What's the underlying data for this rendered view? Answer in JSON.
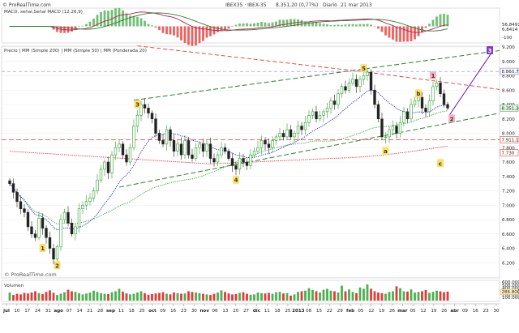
{
  "header": {
    "brand": "© ProRealTime.com",
    "instrument": "IBEX35 · IBEX-35",
    "last": "8.351,20 (0,77%)",
    "period": "Diario",
    "date": "21 mar 2013"
  },
  "panels": {
    "macd_label": "MACD, señal,Señal MACD (12,26,9)",
    "price_label": "Precio | MM (Simple 200) | MM (Simple 50) | MM (Ponderada 20)",
    "volume_label": "Volumen",
    "brand_small": "© ProRealTime.com"
  },
  "colors": {
    "up": "#2ca02c",
    "down": "#222222",
    "ma200": "#d62728",
    "ma50": "#2ca02c",
    "ma20": "#1f1fbf",
    "trend_upper": "#2e7d32",
    "resistance": "#e53935",
    "projection": "#6a1bb5",
    "label_bg_yellow": "#ffe066",
    "label_bg_pink": "#f8b4c0"
  },
  "chart_data": {
    "type": "candlestick",
    "title": "IBEX35",
    "period": "Diario",
    "price_axis": {
      "ylim": [
        6000,
        9200
      ],
      "ticks": [
        6200,
        6400,
        6600,
        6800,
        7000,
        7200,
        7400,
        7600,
        7800,
        8000,
        8200,
        8400,
        8600,
        8800,
        9000,
        9200
      ],
      "tick_labels": [
        "6.200",
        "6.400",
        "6.600",
        "6.800",
        "7.000",
        "7.200",
        "7.400",
        "7.600",
        "7.800",
        "8.000",
        "8.200",
        "8.400",
        "8.600",
        "8.800",
        "9.000",
        "9.200"
      ]
    },
    "price_tags": [
      {
        "text": "8.860,7",
        "value": 8860.7,
        "color": "#6666cc"
      },
      {
        "text": "8.351,20",
        "value": 8351.2,
        "color": "#2ca02c"
      },
      {
        "text": "7.911,1",
        "value": 7911.1,
        "color": "#d62728"
      },
      {
        "text": "7.730",
        "value": 7730,
        "color": "#d62728"
      }
    ],
    "x_axis_labels": [
      "jul",
      "10",
      "17",
      "24",
      "31",
      "ago",
      "07",
      "14",
      "21",
      "28",
      "sep",
      "11",
      "18",
      "25",
      "oct",
      "09",
      "16",
      "23",
      "30",
      "nov",
      "06",
      "13",
      "20",
      "27",
      "dic",
      "11",
      "18",
      "25",
      "2013",
      "08",
      "15",
      "22",
      "29",
      "feb",
      "05",
      "12",
      "19",
      "26",
      "mar",
      "05",
      "12",
      "19",
      "26",
      "abr",
      "09",
      "16",
      "23",
      "30"
    ],
    "close": [
      7300,
      7180,
      7050,
      6950,
      6900,
      6700,
      6600,
      6550,
      6820,
      6680,
      6550,
      6400,
      6250,
      6420,
      6800,
      6900,
      6750,
      6600,
      6700,
      6950,
      7000,
      7050,
      7100,
      7200,
      7350,
      7500,
      7600,
      7450,
      7700,
      7800,
      7850,
      7700,
      7600,
      7800,
      8100,
      8250,
      8400,
      8350,
      8280,
      8200,
      8000,
      7900,
      7850,
      8050,
      7900,
      7750,
      7850,
      7700,
      7900,
      7700,
      7650,
      7800,
      7850,
      7750,
      7850,
      7650,
      7600,
      7700,
      7800,
      7750,
      7650,
      7550,
      7500,
      7650,
      7600,
      7550,
      7700,
      7750,
      7800,
      7900,
      7850,
      7800,
      7900,
      7950,
      8000,
      7950,
      8050,
      7950,
      8000,
      8100,
      8050,
      8150,
      8250,
      8300,
      8200,
      8250,
      8300,
      8350,
      8450,
      8400,
      8550,
      8650,
      8600,
      8700,
      8750,
      8650,
      8750,
      8800,
      8850,
      8600,
      8400,
      8200,
      7950,
      7950,
      8050,
      8100,
      8000,
      8150,
      8300,
      8200,
      8400,
      8450,
      8500,
      8350,
      8300,
      8450,
      8650,
      8700,
      8550,
      8400,
      8351
    ],
    "ohlc_note": "Daily candles; bullish candles hollow/green, bearish filled black",
    "annotations": [
      {
        "text": "1",
        "kind": "wave",
        "color": "yellow"
      },
      {
        "text": "2",
        "kind": "wave",
        "color": "yellow"
      },
      {
        "text": "3",
        "kind": "wave",
        "color": "yellow"
      },
      {
        "text": "4",
        "kind": "wave",
        "color": "yellow"
      },
      {
        "text": "5",
        "kind": "wave",
        "color": "yellow"
      },
      {
        "text": "a",
        "kind": "wave",
        "color": "yellow"
      },
      {
        "text": "b",
        "kind": "wave",
        "color": "yellow"
      },
      {
        "text": "c",
        "kind": "wave",
        "color": "yellow"
      },
      {
        "text": "1",
        "kind": "wave",
        "color": "pink"
      },
      {
        "text": "2",
        "kind": "wave",
        "color": "pink"
      },
      {
        "text": "3",
        "kind": "wave",
        "color": "purple"
      }
    ],
    "macd_axis": {
      "tick_labels": [
        "-100"
      ],
      "values_labels": [
        "56,8491",
        "6,8414"
      ]
    },
    "volume_axis": {
      "tick_labels": [
        "600.000",
        "500.000",
        "400.000",
        "300.000",
        "200.000",
        "100.000"
      ],
      "last_label": "286.800"
    },
    "volume": [
      260,
      180,
      220,
      200,
      250,
      230,
      260,
      300,
      240,
      210,
      280,
      330,
      250,
      180,
      220,
      270,
      350,
      300,
      280,
      240,
      200,
      230,
      260,
      320,
      280,
      240,
      220,
      210,
      270,
      300,
      380,
      290,
      230,
      200,
      220,
      260,
      300,
      240,
      190,
      210,
      230,
      250,
      270,
      220,
      200,
      260,
      240,
      220,
      230,
      300,
      280,
      260,
      240,
      220,
      200,
      180,
      220,
      260,
      330,
      280,
      230,
      200,
      210,
      250,
      270,
      220,
      190,
      200,
      260,
      240,
      230,
      250,
      220,
      270,
      280,
      230,
      240,
      160,
      200,
      280,
      300,
      320,
      400,
      340,
      300,
      260,
      350,
      380,
      320,
      300,
      260,
      480,
      300,
      360,
      280,
      240,
      420,
      380,
      520,
      380,
      300,
      260,
      240,
      220,
      280,
      300,
      460,
      400,
      300,
      290,
      360,
      260,
      280,
      300,
      340,
      250,
      280,
      320,
      300,
      270,
      290
    ]
  }
}
